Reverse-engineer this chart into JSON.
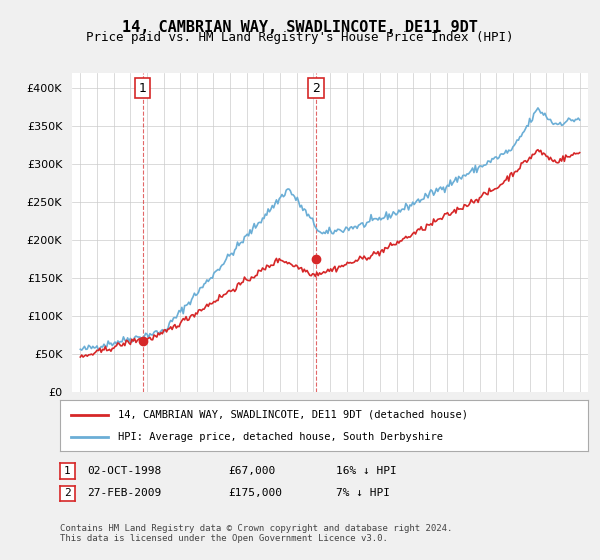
{
  "title": "14, CAMBRIAN WAY, SWADLINCOTE, DE11 9DT",
  "subtitle": "Price paid vs. HM Land Registry's House Price Index (HPI)",
  "legend_line1": "14, CAMBRIAN WAY, SWADLINCOTE, DE11 9DT (detached house)",
  "legend_line2": "HPI: Average price, detached house, South Derbyshire",
  "table_row1": [
    "1",
    "02-OCT-1998",
    "£67,000",
    "16% ↓ HPI"
  ],
  "table_row2": [
    "2",
    "27-FEB-2009",
    "£175,000",
    "7% ↓ HPI"
  ],
  "footnote": "Contains HM Land Registry data © Crown copyright and database right 2024.\nThis data is licensed under the Open Government Licence v3.0.",
  "hpi_color": "#6baed6",
  "price_color": "#d62728",
  "marker1_x": 1998.75,
  "marker1_y": 67000,
  "marker2_x": 2009.15,
  "marker2_y": 175000,
  "vline1_x": 1998.75,
  "vline2_x": 2009.15,
  "ylim": [
    0,
    420000
  ],
  "xlim_start": 1994.5,
  "xlim_end": 2025.5,
  "background_color": "#f0f0f0",
  "plot_bg_color": "#ffffff"
}
